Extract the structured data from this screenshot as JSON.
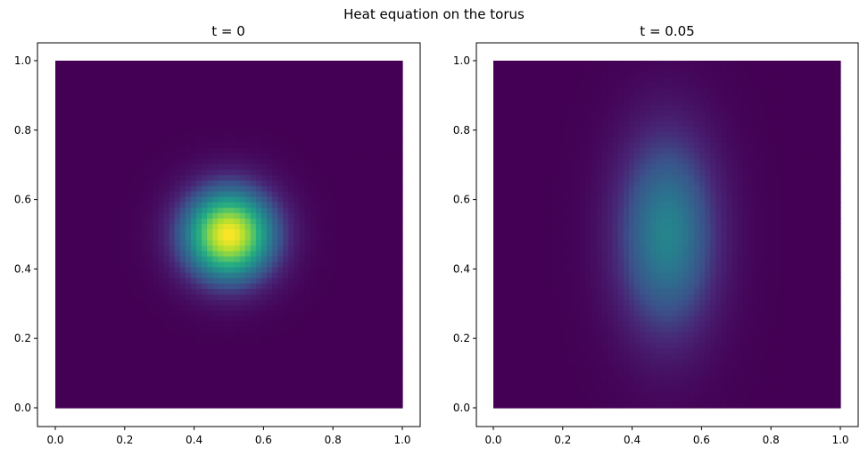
{
  "figure": {
    "suptitle": "Heat equation on the torus"
  },
  "colors": {
    "colormap": "viridis",
    "viridis_low": "#440154",
    "viridis_mid": "#21918c",
    "viridis_high": "#fde725"
  },
  "chart_data": [
    {
      "type": "heatmap",
      "title": "t = 0",
      "xlabel": "",
      "ylabel": "",
      "xlim": [
        0.0,
        1.0
      ],
      "ylim": [
        0.0,
        1.0
      ],
      "xticks": [
        "0.0",
        "0.2",
        "0.4",
        "0.6",
        "0.8",
        "1.0"
      ],
      "yticks": [
        "0.0",
        "0.2",
        "0.4",
        "0.6",
        "0.8",
        "1.0"
      ],
      "grid": false,
      "colormap": "viridis",
      "field": {
        "shape": "gaussian",
        "center": [
          0.5,
          0.5
        ],
        "sigma_x": 0.09,
        "sigma_y": 0.09,
        "peak_fraction": 1.0
      }
    },
    {
      "type": "heatmap",
      "title": "t = 0.05",
      "xlabel": "",
      "ylabel": "",
      "xlim": [
        0.0,
        1.0
      ],
      "ylim": [
        0.0,
        1.0
      ],
      "xticks": [
        "0.0",
        "0.2",
        "0.4",
        "0.6",
        "0.8",
        "1.0"
      ],
      "yticks": [
        "0.0",
        "0.2",
        "0.4",
        "0.6",
        "0.8",
        "1.0"
      ],
      "grid": false,
      "colormap": "viridis",
      "field": {
        "shape": "gaussian",
        "center": [
          0.5,
          0.5
        ],
        "sigma_x": 0.1,
        "sigma_y": 0.2,
        "peak_fraction": 0.45
      }
    }
  ]
}
